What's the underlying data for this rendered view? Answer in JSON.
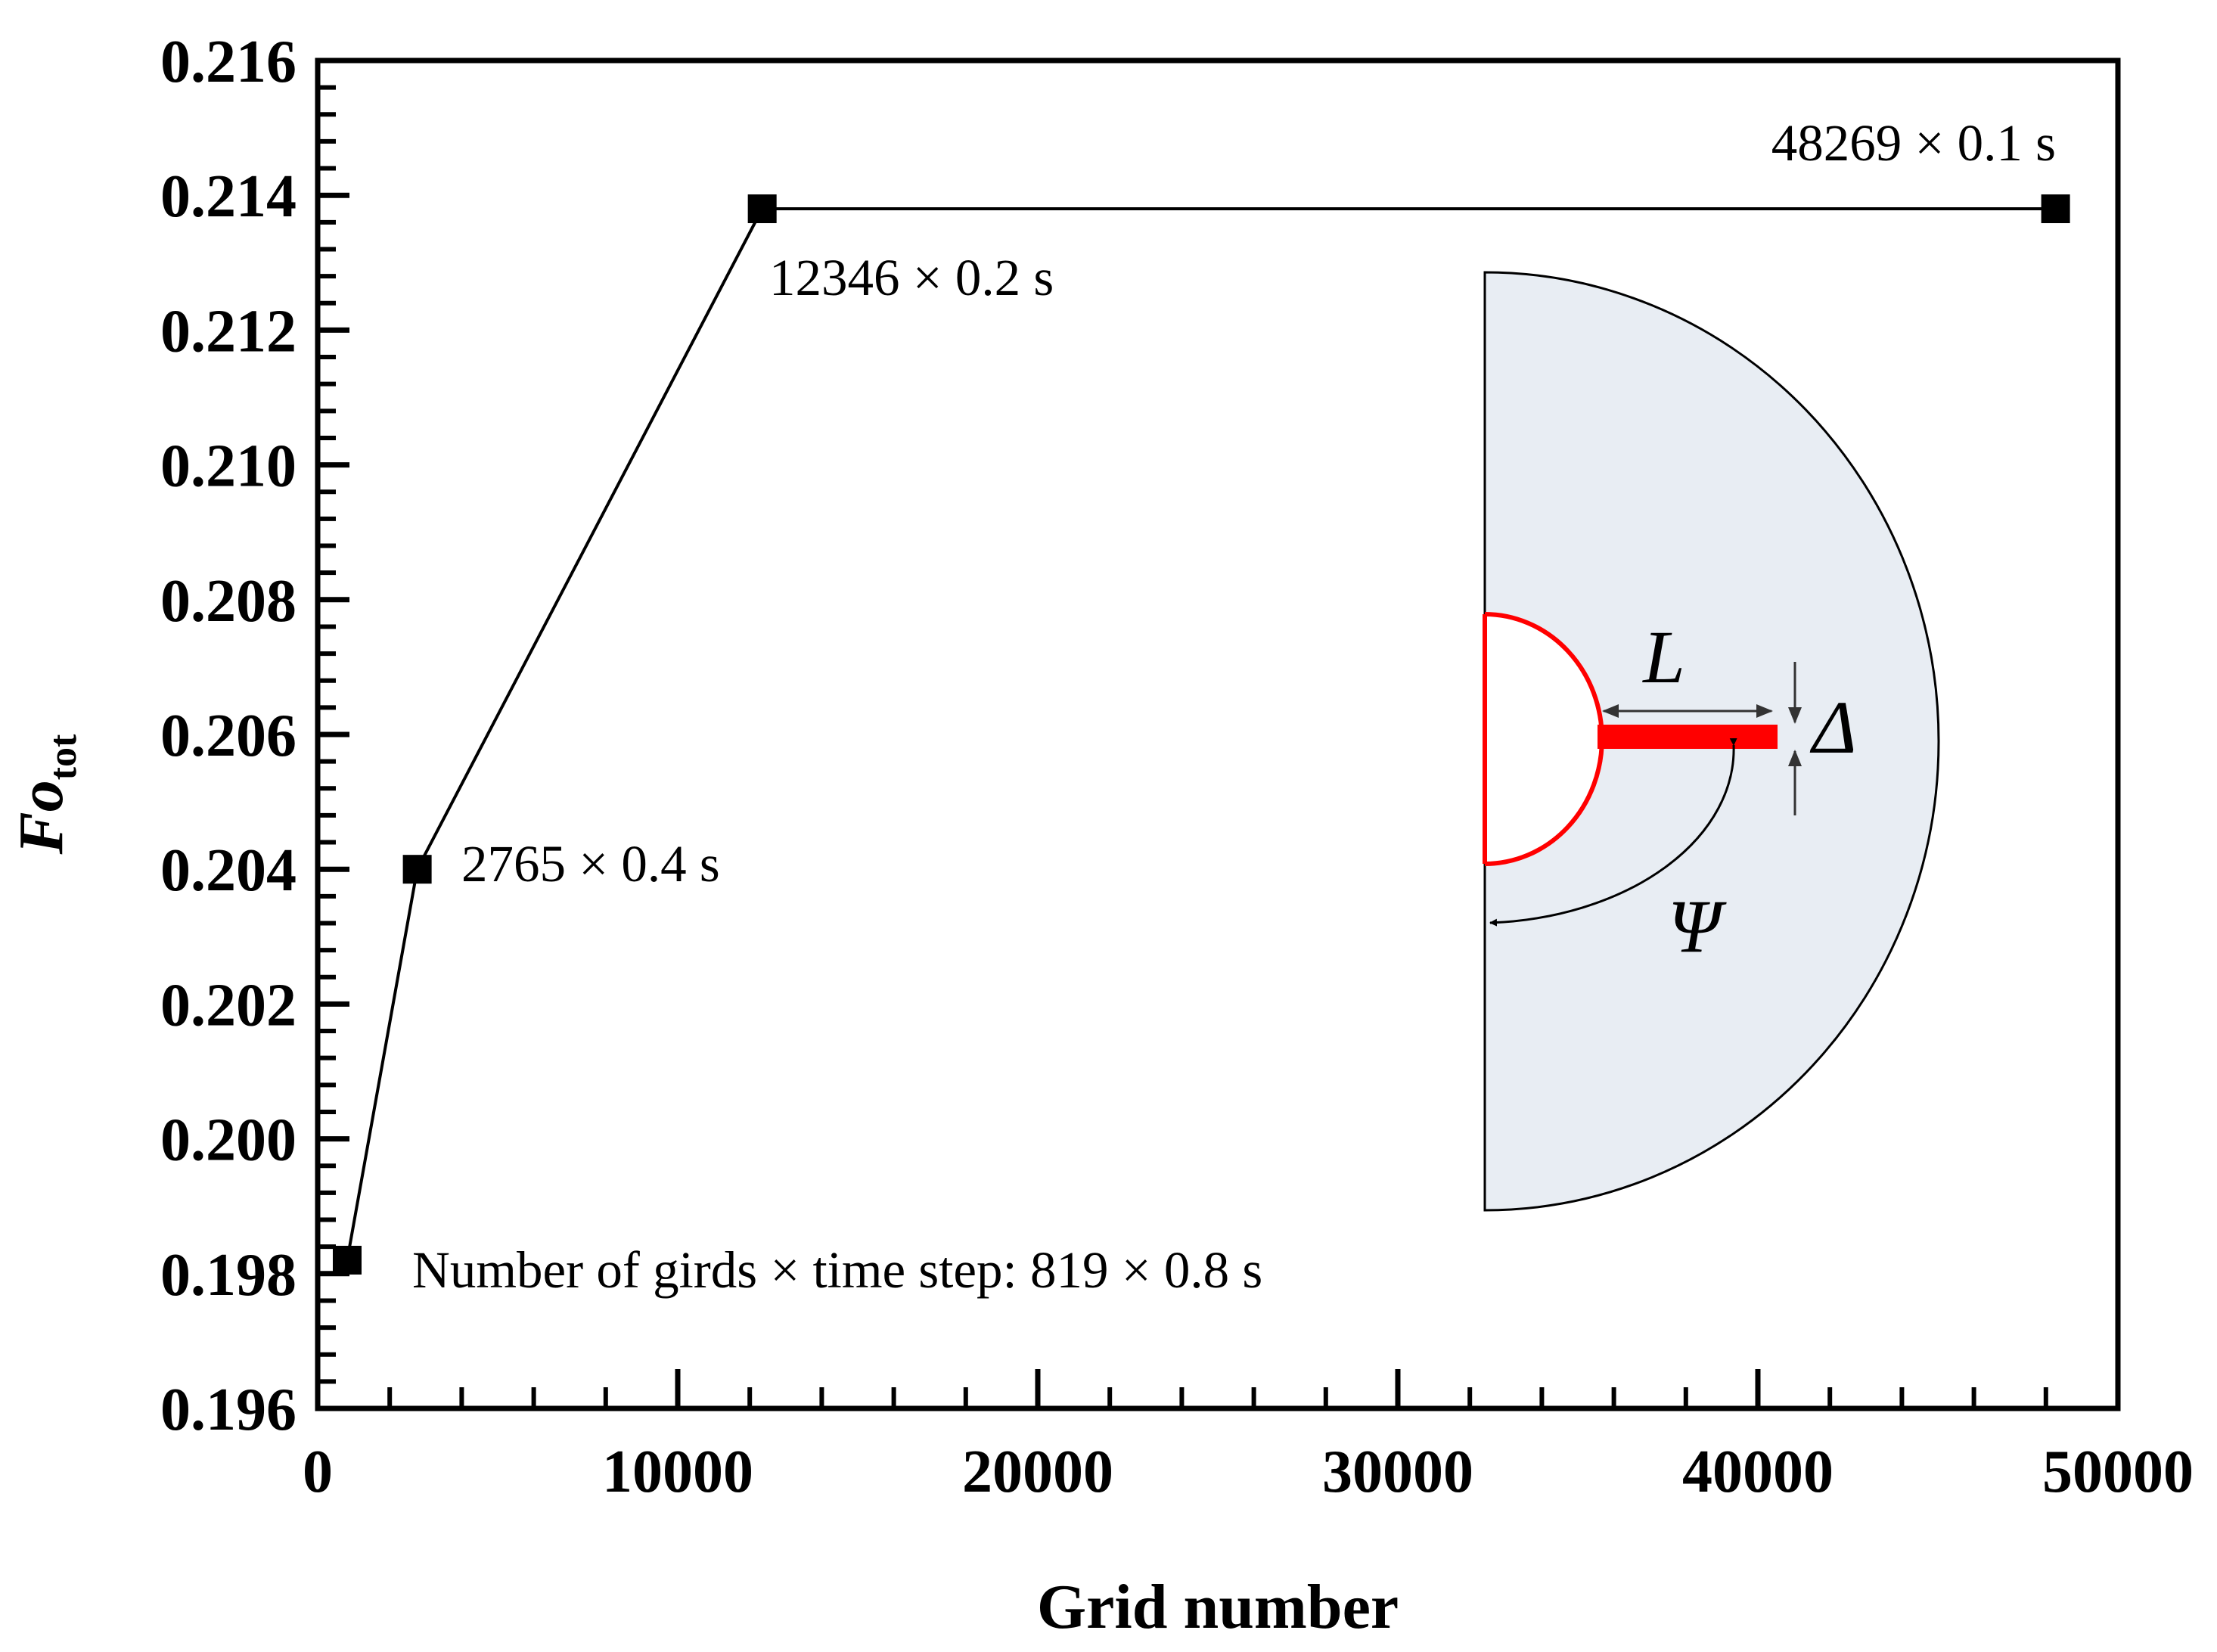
{
  "chart_data": {
    "type": "line",
    "title": "",
    "xlabel": "Grid number",
    "ylabel": {
      "main": "Fo",
      "sub": "tot"
    },
    "xlim": [
      0,
      50000
    ],
    "ylim": [
      0.196,
      0.216
    ],
    "x_ticks": [
      "0",
      "10000",
      "20000",
      "30000",
      "40000",
      "50000"
    ],
    "y_ticks": [
      "0.196",
      "0.198",
      "0.200",
      "0.202",
      "0.204",
      "0.206",
      "0.208",
      "0.210",
      "0.212",
      "0.214",
      "0.216"
    ],
    "series": [
      {
        "name": "Fo_tot",
        "marker": "square",
        "color": "#000000",
        "x": [
          819,
          2765,
          12346,
          48269
        ],
        "y": [
          0.1982,
          0.204,
          0.2138,
          0.2138
        ]
      }
    ],
    "annotations": [
      {
        "text": "Number of girds × time step: 819 × 0.8 s",
        "x": 819,
        "y": 0.1982
      },
      {
        "text": "2765 × 0.4 s",
        "x": 2765,
        "y": 0.204
      },
      {
        "text": "12346 × 0.2 s",
        "x": 12346,
        "y": 0.2138
      },
      {
        "text": "48269 × 0.1 s",
        "x": 48269,
        "y": 0.2138
      }
    ],
    "grid": false,
    "inset": {
      "description_labels": [
        "L",
        "Δ",
        "Ψ"
      ],
      "fill_color": "#e8edf3",
      "accent_color": "#ff0000"
    }
  }
}
